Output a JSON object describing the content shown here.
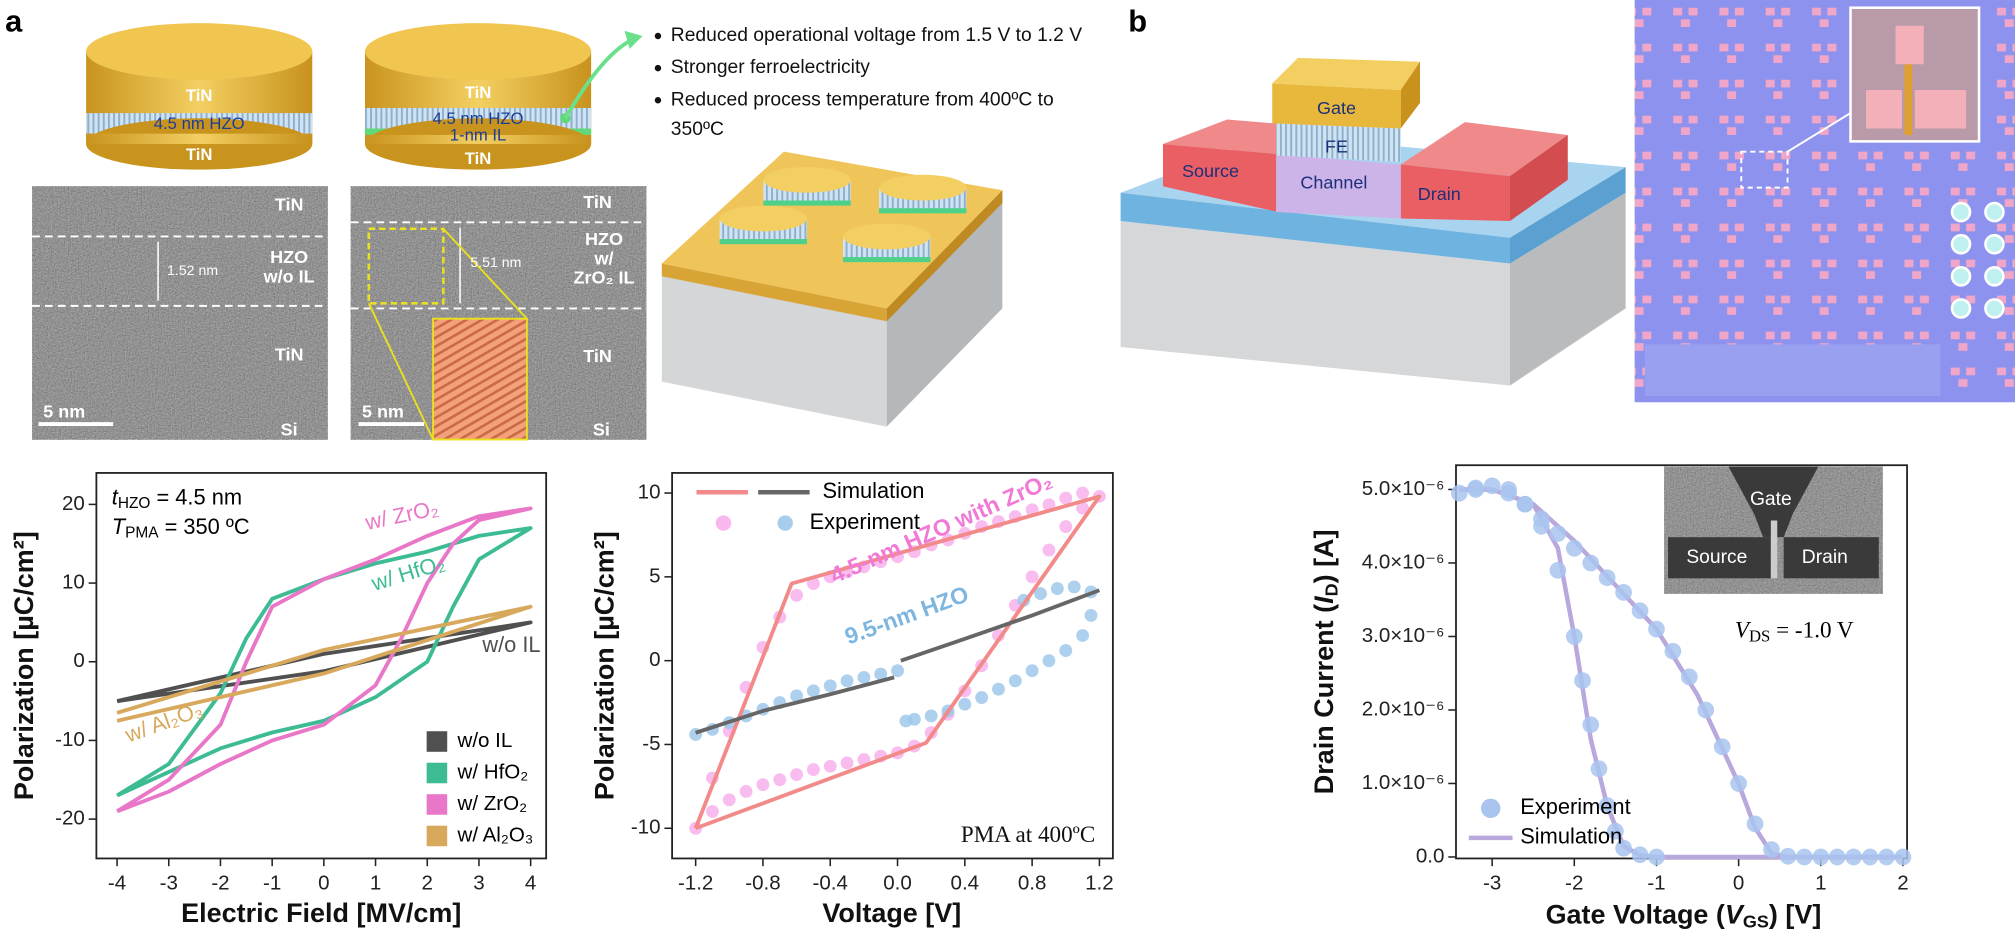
{
  "panel_labels": [
    "a",
    "b"
  ],
  "illustration": {
    "disk1": {
      "top": "TiN",
      "middle": "4.5 nm HZO",
      "bottom": "TiN"
    },
    "disk2": {
      "top": "TiN",
      "middle": "4.5 nm HZO",
      "interlayer": "1-nm IL",
      "bottom": "TiN"
    },
    "bullets": [
      [
        "Reduced operational voltage from 1.5 V to 1.2 V"
      ],
      [
        "Stronger ferroelectricity"
      ],
      [
        "Reduced process temperature from 400ºC to",
        "350ºC"
      ]
    ],
    "tem1": {
      "top": "TiN",
      "layer": [
        "HZO",
        "w/o IL"
      ],
      "thickness": "1.52 nm",
      "lower": "TiN",
      "scale": "5 nm",
      "substrate": "Si"
    },
    "tem2": {
      "top": "TiN",
      "layer": [
        "HZO",
        "w/",
        "ZrO₂ IL"
      ],
      "thickness": "5.51 nm",
      "lower": "TiN",
      "scale": "5 nm",
      "substrate": "Si"
    }
  },
  "device": {
    "gate": "Gate",
    "fe": "FE",
    "source": "Source",
    "channel": "Channel",
    "drain": "Drain",
    "inset": {
      "gate": "Gate",
      "source": "Source",
      "drain": "Drain"
    }
  },
  "chart_data": [
    {
      "type": "line",
      "xlabel": "Electric Field [MV/cm]",
      "ylabel": "Polarization [µC/cm²]",
      "xlim": [
        -4.4,
        4.3
      ],
      "ylim": [
        -25,
        24
      ],
      "xticks": [
        -4,
        -3,
        -2,
        -1,
        0,
        1,
        2,
        3,
        4
      ],
      "yticks": [
        -20,
        -10,
        0,
        10,
        20
      ],
      "annotations": [
        [
          "t",
          "HZO",
          " = 4.5 nm"
        ],
        [
          "T",
          "PMA",
          " = 350 ºC"
        ]
      ],
      "legend": "lower right",
      "series": [
        {
          "name": "w/o IL",
          "color": "#505050",
          "x": [
            -4,
            0,
            4,
            0,
            -4
          ],
          "values": [
            -5,
            -1.2,
            5,
            1,
            -5
          ]
        },
        {
          "name": "w/ HfO₂",
          "color": "#3dbb94",
          "x": [
            -4,
            -3,
            -2,
            -1,
            0,
            1,
            2,
            2.5,
            3,
            4,
            3,
            2,
            1,
            0,
            -1,
            -1.5,
            -2,
            -3,
            -4
          ],
          "values": [
            -17,
            -14,
            -11,
            -9,
            -7.5,
            -4.5,
            0,
            7,
            13,
            17,
            16,
            14,
            12.5,
            10.5,
            8,
            3,
            -4,
            -13,
            -17
          ]
        },
        {
          "name": "w/ ZrO₂",
          "color": "#e977c8",
          "x": [
            -4,
            -3,
            -2,
            -1,
            0,
            1,
            1.5,
            2,
            2.5,
            3,
            4,
            3,
            2,
            1,
            0,
            -1,
            -1.5,
            -2,
            -3,
            -4
          ],
          "values": [
            -19,
            -16.5,
            -13,
            -10,
            -8,
            -3,
            3,
            10,
            15,
            18,
            19.5,
            18.5,
            16,
            13,
            10.5,
            7,
            0,
            -8,
            -15,
            -19
          ]
        },
        {
          "name": "w/ Al₂O₃",
          "color": "#d8a85c",
          "x": [
            -4,
            0,
            4,
            0,
            -4
          ],
          "values": [
            -7.5,
            -1.5,
            7,
            1.5,
            -6.5
          ]
        }
      ]
    },
    {
      "type": "line",
      "xlabel": "Voltage [V]",
      "ylabel": "Polarization [µC/cm²]",
      "xlim": [
        -1.34,
        1.28
      ],
      "ylim": [
        -11.8,
        11.2
      ],
      "xticks": [
        -1.2,
        -0.8,
        -0.4,
        {
          "value": 0,
          "label": "0.0"
        },
        0.4,
        0.8,
        1.2
      ],
      "yticks": [
        -10,
        -5,
        0,
        5,
        10
      ],
      "annotations": [
        {
          "text": "4.5-nm HZO with ZrO₂",
          "color": "#f07ad6"
        },
        {
          "text": "9.5-nm HZO",
          "color": "#7fb6e0"
        },
        {
          "text": "PMA at 400ºC"
        }
      ],
      "legend": "upper left",
      "series": [
        {
          "name": "Simulation",
          "curves": [
            {
              "color": "#f28a8a",
              "x": [
                -1.2,
                0.17,
                1.2,
                -0.63,
                -1.2
              ],
              "values": [
                -10,
                -4.9,
                9.8,
                4.6,
                -10
              ]
            },
            {
              "color": "#666666",
              "x": [
                -1.2,
                -0.8,
                -0.4,
                -0.02,
                0,
                0.02,
                0.4,
                0.8,
                1.2
              ],
              "values": [
                -4.3,
                -3,
                -2,
                -1,
                null,
                0,
                1.3,
                2.7,
                4.2
              ]
            }
          ]
        },
        {
          "name": "Experiment",
          "marker": "circle",
          "curves": [
            {
              "color": "#f7b0ec",
              "x": [
                -1.2,
                -1.1,
                -1.0,
                -0.9,
                -0.8,
                -0.7,
                -0.6,
                -0.5,
                -0.4,
                -0.3,
                -0.2,
                -0.1,
                0,
                0.1,
                0.2,
                0.3,
                0.4,
                0.5,
                0.6,
                0.7,
                0.8,
                0.9,
                1.0,
                1.1,
                1.2,
                1.1,
                1.0,
                0.9,
                0.8,
                0.7,
                0.6,
                0.5,
                0.4,
                0.3,
                0.2,
                0.1,
                0,
                -0.1,
                -0.2,
                -0.3,
                -0.4,
                -0.5,
                -0.6,
                -0.7,
                -0.8,
                -0.9,
                -1.0,
                -1.1
              ],
              "values": [
                -10,
                -9,
                -8.3,
                -7.8,
                -7.4,
                -7.1,
                -6.8,
                -6.5,
                -6.3,
                -6.1,
                -5.9,
                -5.7,
                -5.5,
                -5.1,
                -4.3,
                -3.2,
                -1.8,
                -0.3,
                1.5,
                3.3,
                5,
                6.6,
                8,
                9.1,
                9.8,
                10,
                9.7,
                9.3,
                9,
                8.6,
                8.3,
                8,
                7.6,
                7.2,
                6.9,
                6.5,
                6.2,
                5.9,
                5.6,
                5.3,
                5,
                4.6,
                3.9,
                2.6,
                0.8,
                -1.6,
                -4.2,
                -7
              ]
            },
            {
              "color": "#9dc8ea",
              "x": [
                -1.2,
                -1.1,
                -1.0,
                -0.9,
                -0.8,
                -0.7,
                -0.6,
                -0.5,
                -0.4,
                -0.3,
                -0.2,
                -0.1,
                0,
                0.05,
                0.1,
                0.2,
                0.3,
                0.4,
                0.5,
                0.6,
                0.7,
                0.8,
                0.9,
                1.0,
                1.1,
                1.15,
                1.15,
                1.05,
                0.95,
                0.85,
                0.75
              ],
              "values": [
                -4.4,
                -4.1,
                -3.7,
                -3.3,
                -2.9,
                -2.5,
                -2.1,
                -1.8,
                -1.5,
                -1.2,
                -1,
                -0.8,
                -0.6,
                -3.6,
                -3.5,
                -3.3,
                -3,
                -2.6,
                -2.2,
                -1.7,
                -1.2,
                -0.6,
                0,
                0.6,
                1.5,
                2.7,
                4.1,
                4.4,
                4.3,
                4,
                3.6
              ]
            }
          ]
        }
      ]
    },
    {
      "type": "line",
      "xlabel": [
        "Gate Voltage (",
        "V",
        "GS",
        ") [V]"
      ],
      "ylabel": [
        "Drain Current (",
        "I",
        "D",
        ") [A]"
      ],
      "xlim": [
        -3.44,
        2.05
      ],
      "ylim": [
        -2e-08,
        5.33e-06
      ],
      "xticks": [
        -3,
        -2,
        -1,
        0,
        1,
        2
      ],
      "yticks": [
        {
          "value": 0,
          "label": "0.0"
        },
        {
          "value": 1e-06,
          "label": "1.0×10⁻⁶"
        },
        {
          "value": 2e-06,
          "label": "2.0×10⁻⁶"
        },
        {
          "value": 3e-06,
          "label": "3.0×10⁻⁶"
        },
        {
          "value": 4e-06,
          "label": "4.0×10⁻⁶"
        },
        {
          "value": 5e-06,
          "label": "5.0×10⁻⁶"
        }
      ],
      "annotations": [
        [
          "V",
          "DS",
          " = -1.0 V"
        ]
      ],
      "legend": "lower left",
      "series": [
        {
          "name": "Experiment",
          "marker": "circle",
          "curves": [
            {
              "color": "#a8c4ee",
              "x": [
                -3.4,
                -3.2,
                -3.0,
                -2.8,
                -2.6,
                -2.4,
                -2.2,
                -2.0,
                -1.9,
                -1.8,
                -1.7,
                -1.6,
                -1.5,
                -1.4,
                -1.2,
                -1.0
              ],
              "values": [
                4.95e-06,
                5.02e-06,
                5.05e-06,
                5e-06,
                4.8e-06,
                4.5e-06,
                3.9e-06,
                3e-06,
                2.4e-06,
                1.8e-06,
                1.2e-06,
                7e-07,
                3.5e-07,
                1.2e-07,
                3e-08,
                0
              ]
            },
            {
              "color": "#a8c4ee",
              "x": [
                -3.2,
                -2.8,
                -2.6,
                -2.4,
                -2.2,
                -2.0,
                -1.8,
                -1.6,
                -1.4,
                -1.2,
                -1.0,
                -0.8,
                -0.6,
                -0.4,
                -0.2,
                0,
                0.2,
                0.4,
                0.6,
                0.8,
                1.0,
                1.2,
                1.4,
                1.6,
                1.8,
                2.0
              ],
              "values": [
                5e-06,
                4.95e-06,
                4.8e-06,
                4.6e-06,
                4.4e-06,
                4.2e-06,
                4e-06,
                3.8e-06,
                3.6e-06,
                3.35e-06,
                3.1e-06,
                2.8e-06,
                2.45e-06,
                2e-06,
                1.5e-06,
                1e-06,
                4.5e-07,
                1e-07,
                1e-08,
                0,
                0,
                0,
                0,
                0,
                0,
                0
              ]
            }
          ]
        },
        {
          "name": "Simulation",
          "curves": [
            {
              "color": "#b9a8dc",
              "x": [
                -3.4,
                -3,
                -2.5,
                -2.2,
                -2,
                -1.8,
                -1.6,
                -1.4,
                -1.2,
                -1,
                0,
                1,
                2
              ],
              "values": [
                5e-06,
                5e-06,
                4.8e-06,
                4.2e-06,
                3e-06,
                1.6e-06,
                7e-07,
                1.5e-07,
                2e-08,
                0,
                0,
                0,
                0
              ]
            },
            {
              "color": "#b9a8dc",
              "x": [
                -3.4,
                -3,
                -2.5,
                -2,
                -1.5,
                -1,
                -0.5,
                0,
                0.2,
                0.4,
                0.6,
                1,
                2
              ],
              "values": [
                5e-06,
                5e-06,
                4.8e-06,
                4.3e-06,
                3.7e-06,
                3.1e-06,
                2.2e-06,
                1e-06,
                4e-07,
                5e-08,
                0,
                0,
                0
              ]
            }
          ]
        }
      ]
    }
  ]
}
